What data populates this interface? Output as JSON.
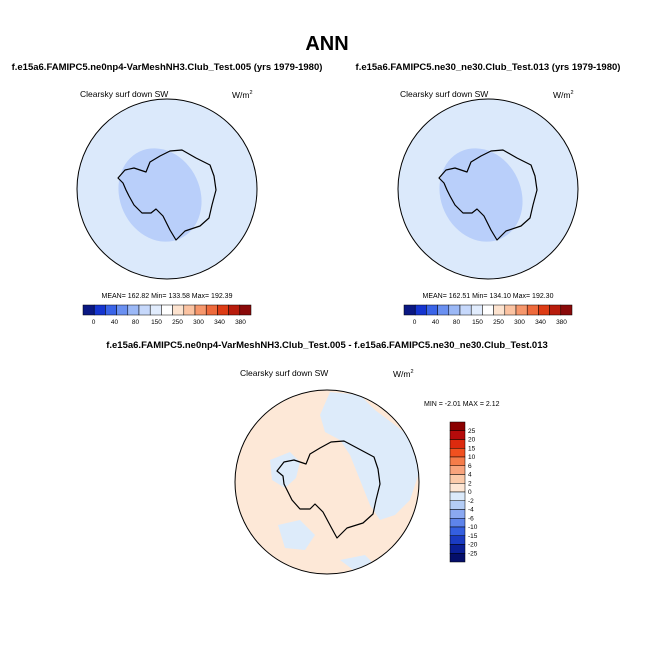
{
  "figure": {
    "title": "ANN"
  },
  "colors": {
    "ocean_light": "#dbe9fb",
    "ice_core": "#b9cffa",
    "diff_ocean": "#fde8d7",
    "diff_ice": "#ddebfa",
    "coast": "#000000"
  },
  "chart_data": [
    {
      "type": "heatmap",
      "title": "f.e15a6.FAMIPC5.ne0np4-VarMeshNH3.Club_Test.005 (yrs 1979-1980)",
      "variable": "Clearsky surf down SW",
      "units": "W/m",
      "units_exp": "2",
      "stats": "MEAN= 162.82  Min= 133.58  Max= 192.39",
      "colorbar": {
        "ticks": [
          "0",
          "40",
          "80",
          "150",
          "250",
          "300",
          "340",
          "380"
        ],
        "colors": [
          "#0a1883",
          "#1535d0",
          "#3a64e8",
          "#6a90f1",
          "#9bb8f6",
          "#c6d8fb",
          "#e1ecfd",
          "#ffffff",
          "#fde3cf",
          "#fbc3a2",
          "#f6976c",
          "#ee6a3c",
          "#dd3c15",
          "#b81c0c",
          "#8a0a0a"
        ]
      }
    },
    {
      "type": "heatmap",
      "title": "f.e15a6.FAMIPC5.ne30_ne30.Club_Test.013 (yrs 1979-1980)",
      "variable": "Clearsky surf down SW",
      "units": "W/m",
      "units_exp": "2",
      "stats": "MEAN= 162.51  Min= 134.10  Max= 192.30",
      "colorbar": {
        "ticks": [
          "0",
          "40",
          "80",
          "150",
          "250",
          "300",
          "340",
          "380"
        ],
        "colors": [
          "#0a1883",
          "#1535d0",
          "#3a64e8",
          "#6a90f1",
          "#9bb8f6",
          "#c6d8fb",
          "#e1ecfd",
          "#ffffff",
          "#fde3cf",
          "#fbc3a2",
          "#f6976c",
          "#ee6a3c",
          "#dd3c15",
          "#b81c0c",
          "#8a0a0a"
        ]
      }
    },
    {
      "type": "heatmap",
      "title": "f.e15a6.FAMIPC5.ne0np4-VarMeshNH3.Club_Test.005 - f.e15a6.FAMIPC5.ne30_ne30.Club_Test.013",
      "variable": "Clearsky surf down SW",
      "units": "W/m",
      "units_exp": "2",
      "stats": "MIN = -2.01 MAX =   2.12",
      "colorbar": {
        "ticks": [
          "25",
          "20",
          "15",
          "10",
          "6",
          "4",
          "2",
          "0",
          "-2",
          "-4",
          "-6",
          "-10",
          "-15",
          "-20",
          "-25"
        ],
        "colors": [
          "#8a0000",
          "#b50b0b",
          "#dc2a0e",
          "#f1501f",
          "#f57c4a",
          "#f8a47d",
          "#fbcaa9",
          "#fde6d4",
          "#dbeafb",
          "#b4cdf6",
          "#8aa8f1",
          "#5e84eb",
          "#345fe0",
          "#1a3bc2",
          "#0b1f95",
          "#050f6a"
        ]
      }
    }
  ]
}
